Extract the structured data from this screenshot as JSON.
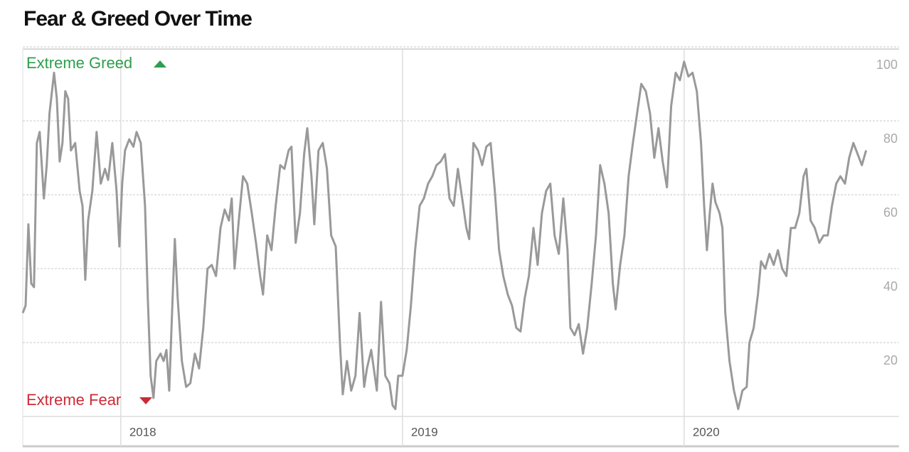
{
  "chart_data": {
    "type": "line",
    "title": "Fear & Greed Over Time",
    "annotations": [
      "Extreme Greed",
      "Extreme Fear"
    ],
    "color": "#999999",
    "xlim": [
      2017.652,
      2020.763
    ],
    "xticks": [
      2018,
      2019,
      2020
    ],
    "ylim": [
      0,
      100
    ],
    "yticks": [
      20,
      40,
      60,
      80,
      100
    ],
    "grid": true,
    "x": [
      2017.652,
      2017.662,
      2017.672,
      2017.682,
      2017.692,
      2017.702,
      2017.712,
      2017.727,
      2017.737,
      2017.747,
      2017.763,
      2017.773,
      2017.783,
      2017.793,
      2017.803,
      2017.813,
      2017.823,
      2017.838,
      2017.854,
      2017.864,
      2017.874,
      2017.884,
      2017.899,
      2017.914,
      2017.929,
      2017.944,
      2017.955,
      2017.97,
      2017.985,
      2017.995,
      2018.005,
      2018.015,
      2018.03,
      2018.045,
      2018.056,
      2018.071,
      2018.086,
      2018.096,
      2018.106,
      2018.116,
      2018.126,
      2018.141,
      2018.152,
      2018.162,
      2018.172,
      2018.182,
      2018.192,
      2018.202,
      2018.217,
      2018.232,
      2018.247,
      2018.263,
      2018.278,
      2018.293,
      2018.308,
      2018.323,
      2018.338,
      2018.354,
      2018.369,
      2018.384,
      2018.394,
      2018.404,
      2018.419,
      2018.434,
      2018.449,
      2018.465,
      2018.48,
      2018.495,
      2018.505,
      2018.52,
      2018.535,
      2018.55,
      2018.566,
      2018.581,
      2018.596,
      2018.606,
      2018.621,
      2018.636,
      2018.651,
      2018.662,
      2018.677,
      2018.687,
      2018.702,
      2018.717,
      2018.732,
      2018.747,
      2018.763,
      2018.778,
      2018.788,
      2018.803,
      2018.818,
      2018.833,
      2018.848,
      2018.864,
      2018.874,
      2018.889,
      2018.909,
      2018.924,
      2018.939,
      2018.954,
      2018.965,
      2018.975,
      2018.985,
      2019.0,
      2019.015,
      2019.03,
      2019.045,
      2019.061,
      2019.076,
      2019.091,
      2019.106,
      2019.121,
      2019.136,
      2019.151,
      2019.167,
      2019.182,
      2019.197,
      2019.212,
      2019.227,
      2019.237,
      2019.252,
      2019.268,
      2019.283,
      2019.298,
      2019.313,
      2019.328,
      2019.343,
      2019.358,
      2019.374,
      2019.389,
      2019.404,
      2019.419,
      2019.434,
      2019.449,
      2019.465,
      2019.48,
      2019.495,
      2019.51,
      2019.525,
      2019.54,
      2019.555,
      2019.571,
      2019.586,
      2019.596,
      2019.611,
      2019.626,
      2019.641,
      2019.656,
      2019.672,
      2019.687,
      2019.702,
      2019.717,
      2019.732,
      2019.747,
      2019.757,
      2019.773,
      2019.788,
      2019.803,
      2019.818,
      2019.833,
      2019.848,
      2019.864,
      2019.879,
      2019.894,
      2019.909,
      2019.924,
      2019.939,
      2019.954,
      2019.97,
      2019.985,
      2020.0,
      2020.015,
      2020.03,
      2020.045,
      2020.06,
      2020.071,
      2020.081,
      2020.091,
      2020.101,
      2020.111,
      2020.126,
      2020.136,
      2020.146,
      2020.161,
      2020.177,
      2020.192,
      2020.207,
      2020.222,
      2020.232,
      2020.247,
      2020.262,
      2020.273,
      2020.288,
      2020.303,
      2020.318,
      2020.333,
      2020.348,
      2020.363,
      2020.379,
      2020.394,
      2020.409,
      2020.424,
      2020.434,
      2020.449,
      2020.464,
      2020.48,
      2020.495,
      2020.51,
      2020.525,
      2020.54,
      2020.555,
      2020.571,
      2020.586,
      2020.601,
      2020.616,
      2020.631,
      2020.646
    ],
    "values": [
      28,
      30,
      52,
      36,
      35,
      74,
      77,
      59,
      68,
      82,
      93,
      86,
      69,
      74,
      88,
      86,
      72,
      74,
      61,
      57,
      37,
      53,
      61,
      77,
      63,
      67,
      64,
      74,
      61,
      46,
      63,
      72,
      75,
      73,
      77,
      74,
      57,
      32,
      11,
      5,
      15,
      17,
      15,
      18,
      7,
      28,
      48,
      32,
      15,
      8,
      9,
      17,
      13,
      24,
      40,
      41,
      38,
      51,
      56,
      53,
      59,
      40,
      53,
      65,
      63,
      55,
      47,
      38,
      33,
      49,
      45,
      57,
      68,
      67,
      72,
      73,
      47,
      55,
      71,
      78,
      65,
      52,
      72,
      74,
      67,
      49,
      46,
      20,
      6,
      15,
      7,
      11,
      28,
      8,
      13,
      18,
      7,
      31,
      11,
      9,
      3,
      2,
      11,
      11,
      18,
      30,
      45,
      57,
      59,
      63,
      65,
      68,
      69,
      71,
      59,
      57,
      67,
      59,
      51,
      48,
      74,
      72,
      68,
      73,
      74,
      61,
      45,
      38,
      33,
      30,
      24,
      23,
      32,
      38,
      51,
      41,
      55,
      61,
      63,
      49,
      44,
      59,
      45,
      24,
      22,
      25,
      17,
      24,
      36,
      49,
      68,
      63,
      55,
      36,
      29,
      41,
      49,
      65,
      74,
      82,
      90,
      88,
      82,
      70,
      78,
      69,
      62,
      84,
      93,
      91,
      96,
      92,
      93,
      88,
      74,
      57,
      45,
      55,
      63,
      58,
      55,
      51,
      28,
      15,
      7,
      2,
      7,
      8,
      20,
      24,
      33,
      42,
      40,
      44,
      41,
      45,
      40,
      38,
      51,
      51,
      55,
      65,
      67,
      53,
      51,
      47,
      49,
      49,
      57,
      63,
      65,
      63,
      70,
      74,
      71,
      68,
      72
    ]
  }
}
